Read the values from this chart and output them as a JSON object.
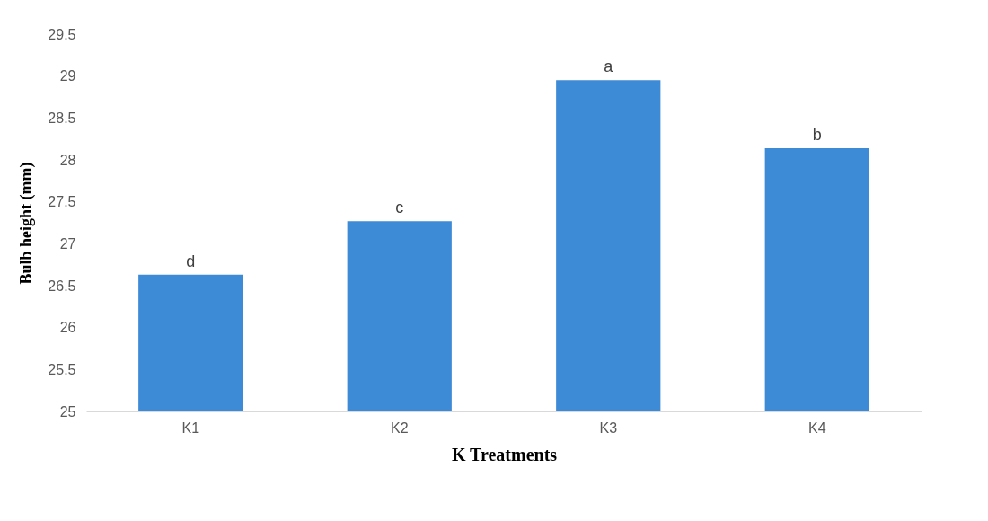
{
  "chart_data": {
    "type": "bar",
    "xlabel": "K Treatments",
    "ylabel": "Bulb height (mm)",
    "categories": [
      "K1",
      "K2",
      "K3",
      "K4"
    ],
    "values": [
      26.63,
      27.27,
      28.95,
      28.14
    ],
    "color": "#3d8ad6",
    "ylim": [
      25,
      29.5
    ],
    "yticks": [
      25,
      25.5,
      26,
      26.5,
      27,
      27.5,
      28,
      28.5,
      29,
      29.5
    ],
    "grid": false,
    "annotations": [
      {
        "text": "d",
        "x": "K1",
        "y": 26.63
      },
      {
        "text": "c",
        "x": "K2",
        "y": 27.27
      },
      {
        "text": "a",
        "x": "K3",
        "y": 28.95
      },
      {
        "text": "b",
        "x": "K4",
        "y": 28.14
      }
    ]
  }
}
